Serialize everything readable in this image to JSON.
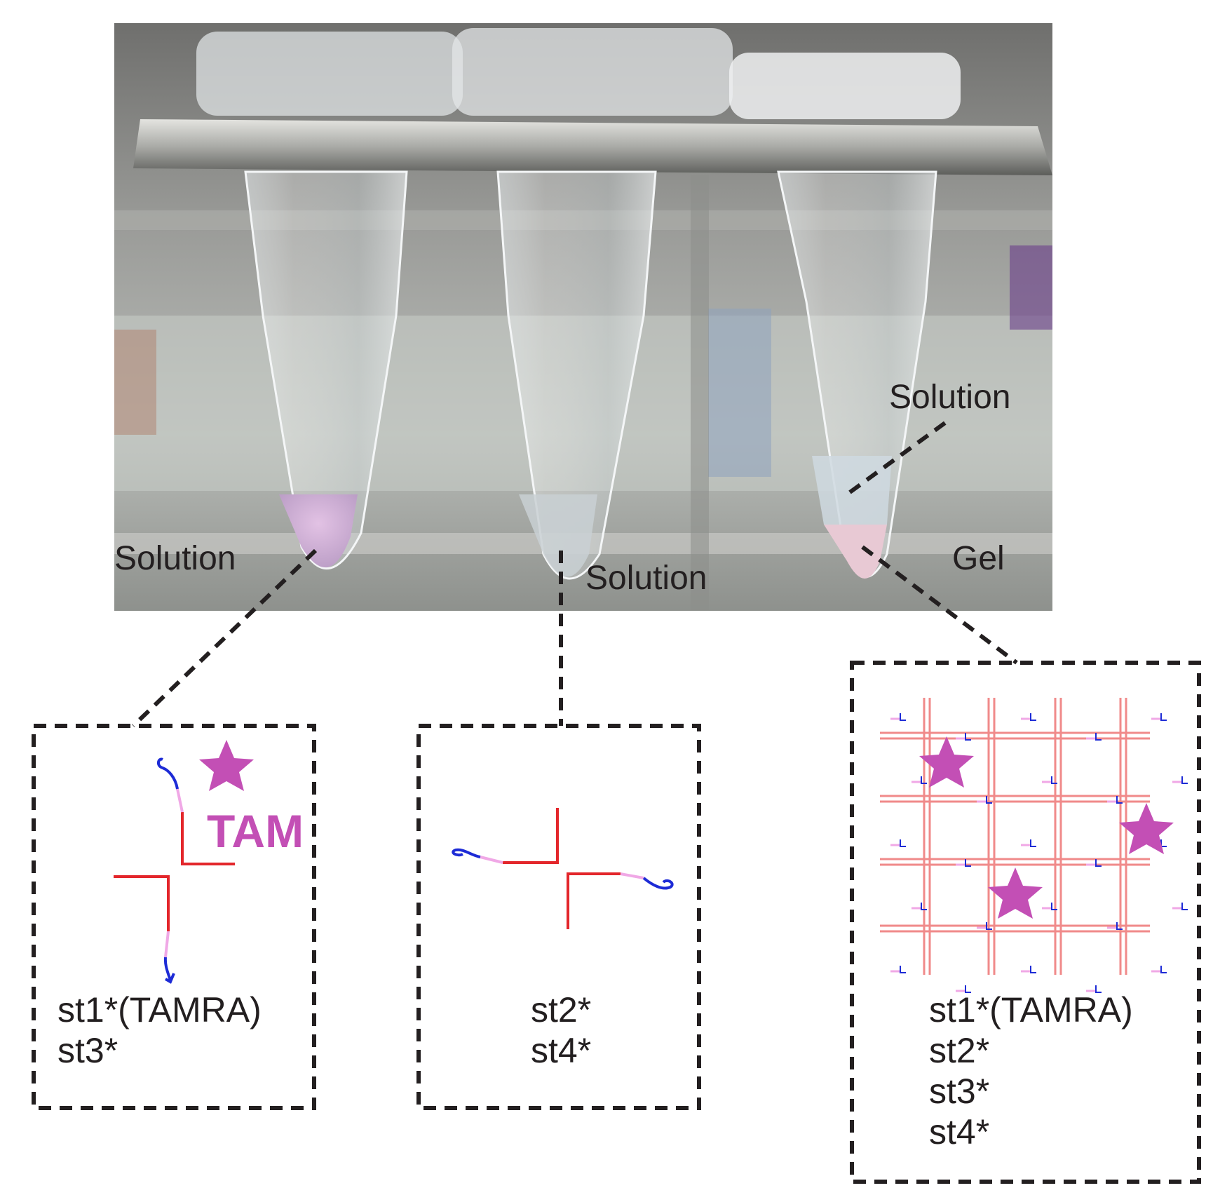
{
  "photo": {
    "labels": {
      "tube1": "Solution",
      "tube2": "Solution",
      "tube3_upper": "Solution",
      "tube3_lower": "Gel"
    }
  },
  "panels": {
    "left": {
      "tag": "TAM",
      "lines": [
        "st1*(TAMRA)",
        "st3*"
      ]
    },
    "middle": {
      "lines": [
        "st2*",
        "st4*"
      ]
    },
    "right": {
      "lines": [
        "st1*(TAMRA)",
        "st2*",
        "st3*",
        "st4*"
      ]
    }
  },
  "colors": {
    "strand_red": "#e3262b",
    "linker_pink": "#f0a8e6",
    "overhang_blue": "#1d2bd6",
    "dye_magenta": "#c34fb5",
    "gel_grid_pink": "#f08a8a",
    "dash_black": "#231f20"
  },
  "icons": {
    "tamra": "star-icon"
  }
}
